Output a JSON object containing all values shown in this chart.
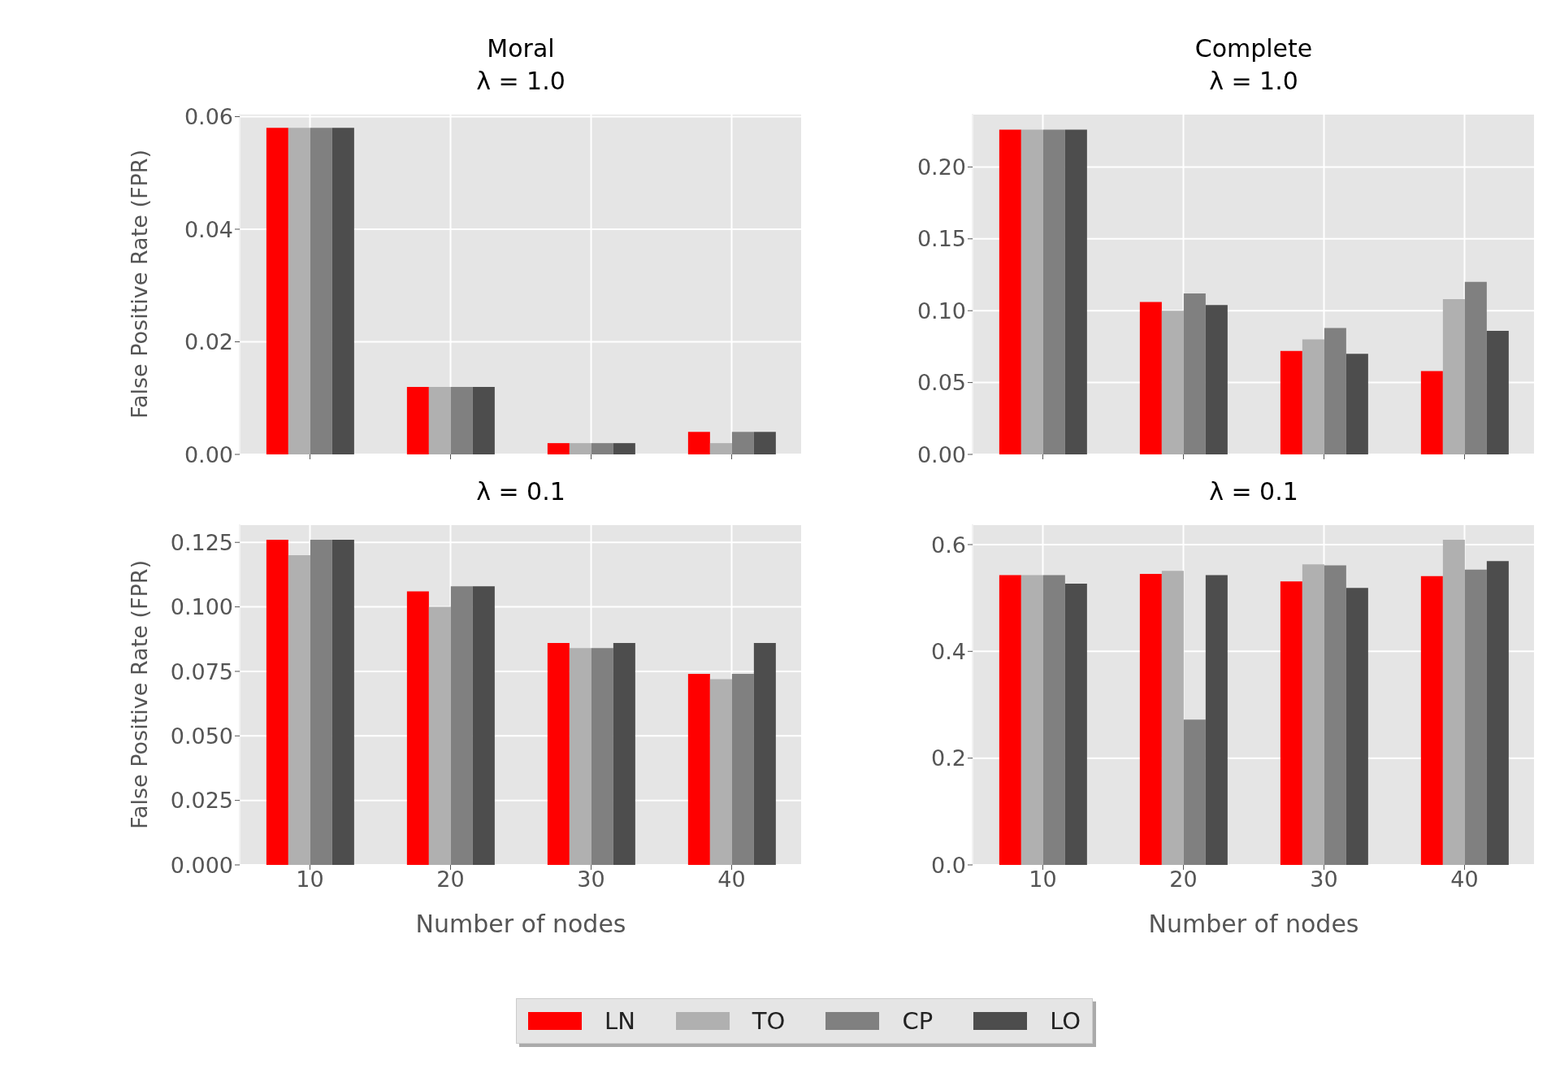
{
  "chart_data": [
    {
      "type": "bar",
      "title": "Moral\nλ = 1.0",
      "ylabel": "False Positive Rate (FPR)",
      "categories": [
        "10",
        "20",
        "30",
        "40"
      ],
      "ylim": [
        0,
        0.0605
      ],
      "yticks": [
        {
          "value": 0,
          "label": "0.00"
        },
        {
          "value": 0.02,
          "label": "0.02"
        },
        {
          "value": 0.04,
          "label": "0.04"
        },
        {
          "value": 0.06,
          "label": "0.06"
        }
      ],
      "grid": true,
      "tick_labels": "y",
      "legend": "bottom",
      "series": [
        {
          "name": "LN",
          "color": "#ff0000",
          "values": [
            0.058,
            0.012,
            0.002,
            0.004
          ]
        },
        {
          "name": "TO",
          "color": "#b0b0b0",
          "values": [
            0.058,
            0.012,
            0.002,
            0.002
          ]
        },
        {
          "name": "CP",
          "color": "#808080",
          "values": [
            0.058,
            0.012,
            0.002,
            0.004
          ]
        },
        {
          "name": "LO",
          "color": "#4d4d4d",
          "values": [
            0.058,
            0.012,
            0.002,
            0.004
          ]
        }
      ]
    },
    {
      "type": "bar",
      "title": "Complete\nλ = 1.0",
      "categories": [
        "10",
        "20",
        "30",
        "40"
      ],
      "ylim": [
        0,
        0.237
      ],
      "yticks": [
        {
          "value": 0,
          "label": "0.00"
        },
        {
          "value": 0.05,
          "label": "0.05"
        },
        {
          "value": 0.1,
          "label": "0.10"
        },
        {
          "value": 0.15,
          "label": "0.15"
        },
        {
          "value": 0.2,
          "label": "0.20"
        }
      ],
      "grid": true,
      "tick_labels": "y",
      "series": [
        {
          "color": "#ff0000",
          "values": [
            0.226,
            0.106,
            0.072,
            0.058
          ]
        },
        {
          "color": "#b0b0b0",
          "values": [
            0.226,
            0.1,
            0.08,
            0.108
          ]
        },
        {
          "color": "#808080",
          "values": [
            0.226,
            0.112,
            0.088,
            0.12
          ]
        },
        {
          "color": "#4d4d4d",
          "values": [
            0.226,
            0.104,
            0.07,
            0.086
          ]
        }
      ]
    },
    {
      "type": "bar",
      "title": "λ = 0.1",
      "xlabel": "Number of nodes",
      "ylabel": "False Positive Rate (FPR)",
      "categories": [
        "10",
        "20",
        "30",
        "40"
      ],
      "ylim": [
        0,
        0.132
      ],
      "yticks": [
        {
          "value": 0,
          "label": "0.000"
        },
        {
          "value": 0.025,
          "label": "0.025"
        },
        {
          "value": 0.05,
          "label": "0.050"
        },
        {
          "value": 0.075,
          "label": "0.075"
        },
        {
          "value": 0.1,
          "label": "0.100"
        },
        {
          "value": 0.125,
          "label": "0.125"
        }
      ],
      "grid": true,
      "series": [
        {
          "color": "#ff0000",
          "values": [
            0.126,
            0.106,
            0.086,
            0.074
          ]
        },
        {
          "color": "#b0b0b0",
          "values": [
            0.12,
            0.1,
            0.084,
            0.072
          ]
        },
        {
          "color": "#808080",
          "values": [
            0.126,
            0.108,
            0.084,
            0.074
          ]
        },
        {
          "color": "#4d4d4d",
          "values": [
            0.126,
            0.108,
            0.086,
            0.086
          ]
        }
      ]
    },
    {
      "type": "bar",
      "title": "λ = 0.1",
      "xlabel": "Number of nodes",
      "categories": [
        "10",
        "20",
        "30",
        "40"
      ],
      "ylim": [
        0,
        0.638
      ],
      "yticks": [
        {
          "value": 0,
          "label": "0.0"
        },
        {
          "value": 0.2,
          "label": "0.2"
        },
        {
          "value": 0.4,
          "label": "0.4"
        },
        {
          "value": 0.6,
          "label": "0.6"
        }
      ],
      "grid": true,
      "series": [
        {
          "color": "#ff0000",
          "values": [
            0.543,
            0.545,
            0.531,
            0.541
          ]
        },
        {
          "color": "#b0b0b0",
          "values": [
            0.543,
            0.551,
            0.563,
            0.609
          ]
        },
        {
          "color": "#808080",
          "values": [
            0.543,
            0.272,
            0.561,
            0.553
          ]
        },
        {
          "color": "#4d4d4d",
          "values": [
            0.527,
            0.543,
            0.519,
            0.569
          ]
        }
      ]
    }
  ]
}
